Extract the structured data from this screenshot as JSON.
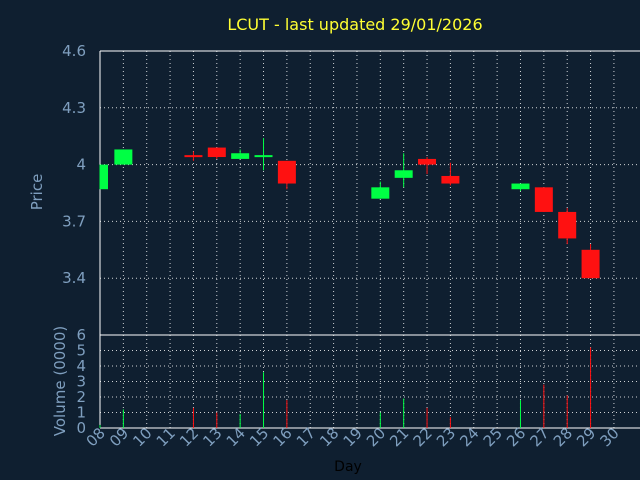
{
  "chart_data": {
    "type": "candlestick",
    "title": "LCUT - last updated 29/01/2026",
    "price_panel": {
      "ylabel": "Price",
      "ylim": [
        3.1,
        4.6
      ],
      "yticks": [
        "4.6",
        "4.3",
        "4",
        "3.7",
        "3.4"
      ],
      "ytick_values": [
        4.6,
        4.3,
        4.0,
        3.7,
        3.4
      ],
      "grid": true
    },
    "volume_panel": {
      "ylabel": "Volume (0000)",
      "ylim": [
        0,
        6
      ],
      "yticks": [
        "6",
        "5",
        "4",
        "3",
        "2",
        "1",
        "0"
      ],
      "ytick_values": [
        6,
        5,
        4,
        3,
        2,
        1,
        0
      ],
      "grid": true
    },
    "xlabel": "Day",
    "x_ticks": [
      "08",
      "09",
      "10",
      "11",
      "12",
      "13",
      "14",
      "15",
      "16",
      "17",
      "18",
      "19",
      "20",
      "21",
      "22",
      "23",
      "24",
      "25",
      "26",
      "27",
      "28",
      "29",
      "30"
    ],
    "candles": [
      {
        "day": "08",
        "open": 3.87,
        "high": 4.0,
        "low": 3.87,
        "close": 4.0,
        "volume": 0.2
      },
      {
        "day": "09",
        "open": 4.0,
        "high": 4.08,
        "low": 4.0,
        "close": 4.08,
        "volume": 1.2
      },
      {
        "day": "12",
        "open": 4.05,
        "high": 4.07,
        "low": 4.02,
        "close": 4.04,
        "volume": 1.3
      },
      {
        "day": "13",
        "open": 4.09,
        "high": 4.09,
        "low": 4.03,
        "close": 4.04,
        "volume": 1.0
      },
      {
        "day": "14",
        "open": 4.03,
        "high": 4.08,
        "low": 4.03,
        "close": 4.06,
        "volume": 0.9
      },
      {
        "day": "15",
        "open": 4.04,
        "high": 4.14,
        "low": 3.97,
        "close": 4.05,
        "volume": 3.6
      },
      {
        "day": "16",
        "open": 4.02,
        "high": 4.02,
        "low": 3.87,
        "close": 3.9,
        "volume": 1.8
      },
      {
        "day": "20",
        "open": 3.82,
        "high": 3.91,
        "low": 3.82,
        "close": 3.88,
        "volume": 1.0
      },
      {
        "day": "21",
        "open": 3.93,
        "high": 4.06,
        "low": 3.88,
        "close": 3.97,
        "volume": 1.9
      },
      {
        "day": "22",
        "open": 4.03,
        "high": 4.04,
        "low": 3.95,
        "close": 4.0,
        "volume": 1.3
      },
      {
        "day": "23",
        "open": 3.94,
        "high": 4.01,
        "low": 3.89,
        "close": 3.9,
        "volume": 0.7
      },
      {
        "day": "26",
        "open": 3.87,
        "high": 3.9,
        "low": 3.86,
        "close": 3.9,
        "volume": 1.8
      },
      {
        "day": "27",
        "open": 3.88,
        "high": 3.88,
        "low": 3.75,
        "close": 3.75,
        "volume": 2.8
      },
      {
        "day": "28",
        "open": 3.75,
        "high": 3.77,
        "low": 3.58,
        "close": 3.61,
        "volume": 2.1
      },
      {
        "day": "29",
        "open": 3.55,
        "high": 3.58,
        "low": 3.4,
        "close": 3.4,
        "volume": 5.2
      }
    ],
    "colors": {
      "background": "#0f1f30",
      "up": "#00ff44",
      "down": "#ff1111",
      "grid": "#ffffff",
      "text": "#7f9fbf",
      "title": "#ffff33"
    }
  }
}
